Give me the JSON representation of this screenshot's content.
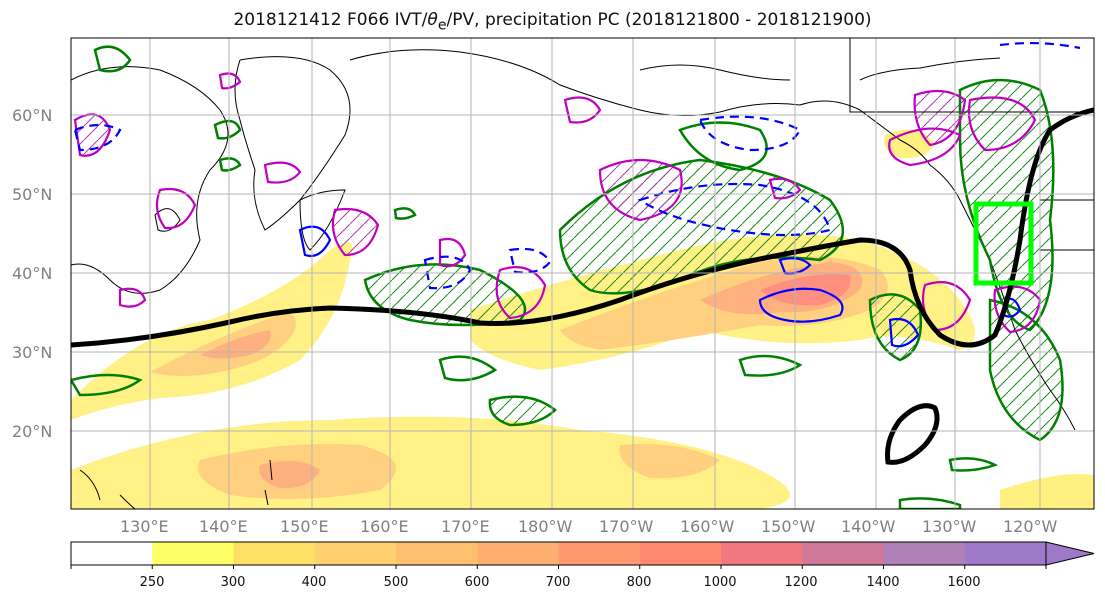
{
  "title": {
    "prefix": "2018121412 F066 IVT/",
    "theta": "θ",
    "theta_sub": "e",
    "suffix": "/PV, precipitation PC (2018121800 - 2018121900)"
  },
  "lat_labels": [
    "60°N",
    "50°N",
    "40°N",
    "30°N",
    "20°N"
  ],
  "lon_labels": [
    "130°E",
    "140°E",
    "150°E",
    "160°E",
    "170°E",
    "180°W",
    "170°W",
    "160°W",
    "150°W",
    "140°W",
    "130°W",
    "120°W"
  ],
  "colorbar": {
    "ticks": [
      "250",
      "300",
      "400",
      "500",
      "600",
      "700",
      "800",
      "1000",
      "1200",
      "1400",
      "1600"
    ],
    "colors": [
      "#ffffff",
      "#ffff66",
      "#ffe066",
      "#ffd070",
      "#ffc070",
      "#ffb070",
      "#ff9a70",
      "#ff8a70",
      "#f07880",
      "#d07898",
      "#b080b8",
      "#a078c8"
    ]
  },
  "colors": {
    "ivt_contour": "#000000",
    "theta_e_pos": "#008000",
    "pv_pos": "#c000c0",
    "pv_neg": "#0000ff",
    "box": "#00ff00"
  }
}
